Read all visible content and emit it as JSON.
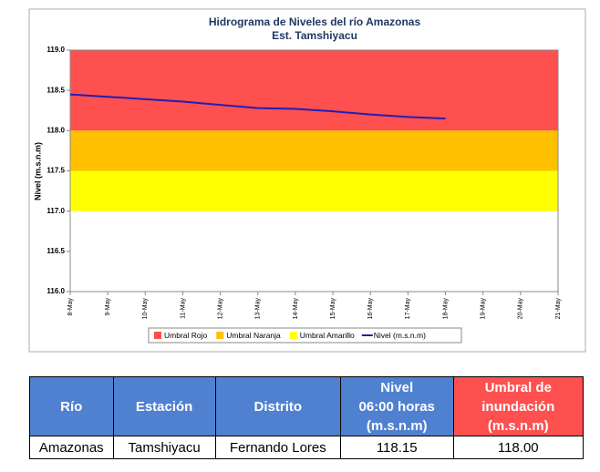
{
  "chart_data": {
    "type": "line",
    "title": "Hidrograma de Niveles del río Amazonas",
    "subtitle": "Est. Tamshiyacu",
    "y_label": "Nivel (m.s.n.m)",
    "categories": [
      "8-May",
      "9-May",
      "10-May",
      "11-May",
      "12-May",
      "13-May",
      "14-May",
      "15-May",
      "16-May",
      "17-May",
      "18-May",
      "19-May",
      "20-May",
      "21-May"
    ],
    "bands": [
      {
        "name": "Umbral Rojo",
        "color": "#ff5050",
        "range": [
          118,
          119
        ]
      },
      {
        "name": "Umbral Naranja",
        "color": "#ffc000",
        "range": [
          117.5,
          118
        ]
      },
      {
        "name": "Umbral Amarillo",
        "color": "#ffff00",
        "range": [
          117,
          117.5
        ]
      }
    ],
    "series": [
      {
        "name": "Nivel (m.s.n.m)",
        "color": "#1f1fb4",
        "values": [
          118.45,
          118.42,
          118.39,
          118.36,
          118.32,
          118.28,
          118.27,
          118.24,
          118.2,
          118.17,
          118.15,
          null,
          null,
          null
        ]
      }
    ],
    "ylim": [
      116,
      119
    ],
    "yticks": [
      {
        "value": 116,
        "label": "116.0"
      },
      {
        "value": 116.5,
        "label": "116.5"
      },
      {
        "value": 117,
        "label": "117.0"
      },
      {
        "value": 117.5,
        "label": "117.5"
      },
      {
        "value": 118,
        "label": "118.0"
      },
      {
        "value": 118.5,
        "label": "118.5"
      },
      {
        "value": 119,
        "label": "119.0"
      }
    ],
    "legend": "bottom"
  },
  "table": {
    "headers": [
      "Río",
      "Estación",
      "Distrito",
      "Nivel\n06:00 horas\n(m.s.n.m)",
      "Umbral de\ninundación\n(m.s.n.m)"
    ],
    "rows": [
      [
        "Amazonas",
        "Tamshiyacu",
        "Fernando Lores",
        "118.15",
        "118.00"
      ]
    ]
  }
}
